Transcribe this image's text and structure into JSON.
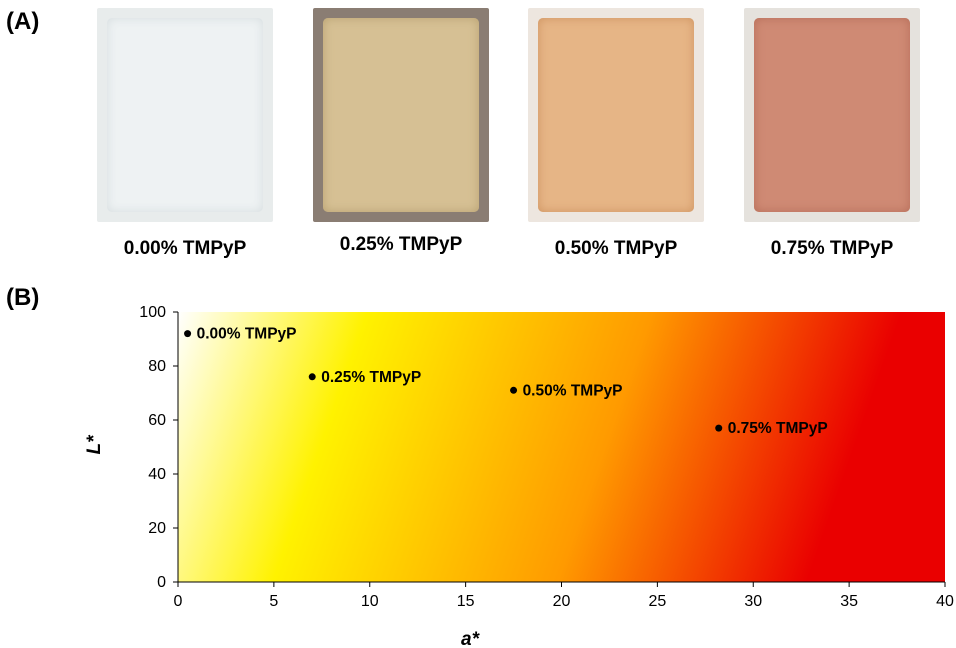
{
  "panel_labels": {
    "a": "(A)",
    "b": "(B)"
  },
  "films": [
    {
      "caption": "0.00% TMPyP",
      "bg": "#e8ecec",
      "sheet": "#eef2f3",
      "edge": "#d6dddf"
    },
    {
      "caption": "0.25% TMPyP",
      "bg": "#8a7d73",
      "sheet": "#d6c094",
      "edge": "#b9a273"
    },
    {
      "caption": "0.50% TMPyP",
      "bg": "#ede6df",
      "sheet": "#e6b586",
      "edge": "#cf9462"
    },
    {
      "caption": "0.75% TMPyP",
      "bg": "#e5e2dd",
      "sheet": "#cf8a74",
      "edge": "#b66e5a"
    }
  ],
  "chart_data": {
    "type": "scatter",
    "xlabel": "a*",
    "ylabel": "L*",
    "xlim": [
      0,
      40
    ],
    "ylim": [
      0,
      100
    ],
    "xticks": [
      0,
      5,
      10,
      15,
      20,
      25,
      30,
      35,
      40
    ],
    "yticks": [
      0,
      20,
      40,
      60,
      80,
      100
    ],
    "background": "gradient white-yellow-orange-red",
    "points": [
      {
        "label": "0.00% TMPyP",
        "x": 0.5,
        "y": 92
      },
      {
        "label": "0.25% TMPyP",
        "x": 7.0,
        "y": 76
      },
      {
        "label": "0.50% TMPyP",
        "x": 17.5,
        "y": 71
      },
      {
        "label": "0.75% TMPyP",
        "x": 28.2,
        "y": 57
      }
    ],
    "colors": {
      "white": "#ffffff",
      "yellow": "#fff200",
      "orange": "#ff9a00",
      "red": "#ea0000"
    }
  }
}
